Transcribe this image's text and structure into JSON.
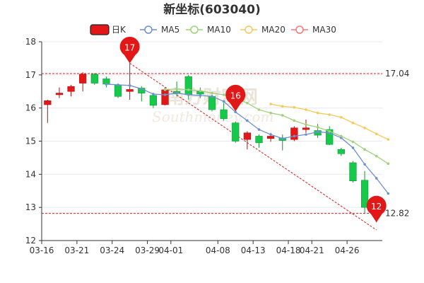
{
  "chart_data": {
    "type": "candlestick",
    "title": "新坐标(603040)",
    "xlabel": "",
    "ylabel": "",
    "ylim": [
      12,
      18
    ],
    "yticks": [
      "12",
      "13",
      "14",
      "15",
      "16",
      "17",
      "18"
    ],
    "xticks": [
      "03-16",
      "03-21",
      "03-24",
      "03-29",
      "04-01",
      "04-08",
      "04-13",
      "04-18",
      "04-21",
      "04-26"
    ],
    "grid": true,
    "legend_position": "top",
    "legend": [
      {
        "name": "日K",
        "color": "#e21818",
        "kind": "candle"
      },
      {
        "name": "MA5",
        "color": "#6f8fd0",
        "kind": "line"
      },
      {
        "name": "MA10",
        "color": "#9fd27a",
        "kind": "line"
      },
      {
        "name": "MA20",
        "color": "#f6c95a",
        "kind": "line"
      },
      {
        "name": "MA30",
        "color": "#ef7a7a",
        "kind": "line"
      }
    ],
    "candles": [
      {
        "o": 16.1,
        "c": 16.22,
        "l": 15.55,
        "h": 16.25
      },
      {
        "o": 16.4,
        "c": 16.45,
        "l": 16.3,
        "h": 16.62
      },
      {
        "o": 16.5,
        "c": 16.65,
        "l": 16.35,
        "h": 16.7
      },
      {
        "o": 16.75,
        "c": 17.02,
        "l": 16.5,
        "h": 17.08
      },
      {
        "o": 17.02,
        "c": 16.75,
        "l": 16.7,
        "h": 17.05
      },
      {
        "o": 16.88,
        "c": 16.72,
        "l": 16.62,
        "h": 16.95
      },
      {
        "o": 16.7,
        "c": 16.35,
        "l": 16.3,
        "h": 16.72
      },
      {
        "o": 16.5,
        "c": 16.56,
        "l": 16.25,
        "h": 17.35
      },
      {
        "o": 16.6,
        "c": 16.45,
        "l": 16.2,
        "h": 16.66
      },
      {
        "o": 16.38,
        "c": 16.08,
        "l": 16.0,
        "h": 16.4
      },
      {
        "o": 16.1,
        "c": 16.55,
        "l": 16.08,
        "h": 16.62
      },
      {
        "o": 16.5,
        "c": 16.45,
        "l": 16.35,
        "h": 16.8
      },
      {
        "o": 16.95,
        "c": 16.4,
        "l": 16.25,
        "h": 17.0
      },
      {
        "o": 16.5,
        "c": 16.42,
        "l": 16.3,
        "h": 16.62
      },
      {
        "o": 16.35,
        "c": 15.95,
        "l": 15.9,
        "h": 16.4
      },
      {
        "o": 15.95,
        "c": 15.68,
        "l": 15.62,
        "h": 16.15
      },
      {
        "o": 15.55,
        "c": 15.0,
        "l": 14.95,
        "h": 15.6
      },
      {
        "o": 15.05,
        "c": 15.25,
        "l": 14.75,
        "h": 15.3
      },
      {
        "o": 15.15,
        "c": 14.95,
        "l": 14.8,
        "h": 15.2
      },
      {
        "o": 15.08,
        "c": 15.15,
        "l": 14.98,
        "h": 15.25
      },
      {
        "o": 15.1,
        "c": 15.02,
        "l": 14.72,
        "h": 15.2
      },
      {
        "o": 15.05,
        "c": 15.4,
        "l": 15.0,
        "h": 15.45
      },
      {
        "o": 15.35,
        "c": 15.4,
        "l": 15.25,
        "h": 15.65
      },
      {
        "o": 15.32,
        "c": 15.18,
        "l": 15.1,
        "h": 15.52
      },
      {
        "o": 15.35,
        "c": 14.9,
        "l": 14.88,
        "h": 15.45
      },
      {
        "o": 14.75,
        "c": 14.62,
        "l": 14.55,
        "h": 14.8
      },
      {
        "o": 14.35,
        "c": 13.8,
        "l": 13.75,
        "h": 14.4
      },
      {
        "o": 13.82,
        "c": 13.0,
        "l": 12.82,
        "h": 14.1
      },
      {
        "o": 12.9,
        "c": 12.95,
        "l": 12.55,
        "h": 13.1
      }
    ],
    "series": [
      {
        "name": "MA5",
        "color": "#6f8fd0",
        "x": [
          5,
          6,
          7,
          8,
          9,
          10,
          11,
          12,
          13,
          14,
          15,
          16,
          17,
          18,
          19,
          20,
          21,
          22,
          23,
          24,
          25,
          26,
          27,
          28,
          29
        ],
        "values": [
          16.72,
          16.7,
          16.68,
          16.58,
          16.42,
          16.4,
          16.45,
          16.4,
          16.38,
          16.35,
          16.2,
          15.88,
          15.62,
          15.35,
          15.2,
          15.08,
          15.15,
          15.2,
          15.28,
          15.25,
          15.1,
          14.8,
          14.3,
          13.88,
          13.42
        ]
      },
      {
        "name": "MA10",
        "color": "#9fd27a",
        "x": [
          10,
          11,
          12,
          13,
          14,
          15,
          16,
          17,
          18,
          19,
          20,
          21,
          22,
          23,
          24,
          25,
          26,
          27,
          28,
          29
        ],
        "values": [
          16.55,
          16.58,
          16.55,
          16.52,
          16.45,
          16.4,
          16.3,
          16.15,
          15.95,
          15.85,
          15.78,
          15.62,
          15.5,
          15.42,
          15.3,
          15.15,
          14.98,
          14.75,
          14.55,
          14.32
        ]
      },
      {
        "name": "MA20",
        "color": "#f6c95a",
        "x": [
          19,
          20,
          21,
          22,
          23,
          24,
          25,
          26,
          27,
          28,
          29
        ],
        "values": [
          16.12,
          16.05,
          16.02,
          15.95,
          15.85,
          15.8,
          15.72,
          15.55,
          15.4,
          15.22,
          15.05
        ]
      }
    ],
    "reference_lines": [
      {
        "label": "17.04",
        "value": 17.04,
        "color": "#e21818"
      },
      {
        "label": "12.82",
        "value": 12.82,
        "color": "#e21818"
      }
    ],
    "trend_line": {
      "from": {
        "x": 7,
        "y": 17.35
      },
      "to": {
        "x": 28,
        "y": 12.32
      },
      "color": "#e21818"
    },
    "markers": [
      {
        "label": "17",
        "x": 7,
        "y": 17.35
      },
      {
        "label": "16",
        "x": 16,
        "y": 15.9
      },
      {
        "label": "12",
        "x": 28,
        "y": 12.55
      }
    ],
    "watermark": "南方财富网",
    "watermark_sub": "Southmoney.com"
  }
}
